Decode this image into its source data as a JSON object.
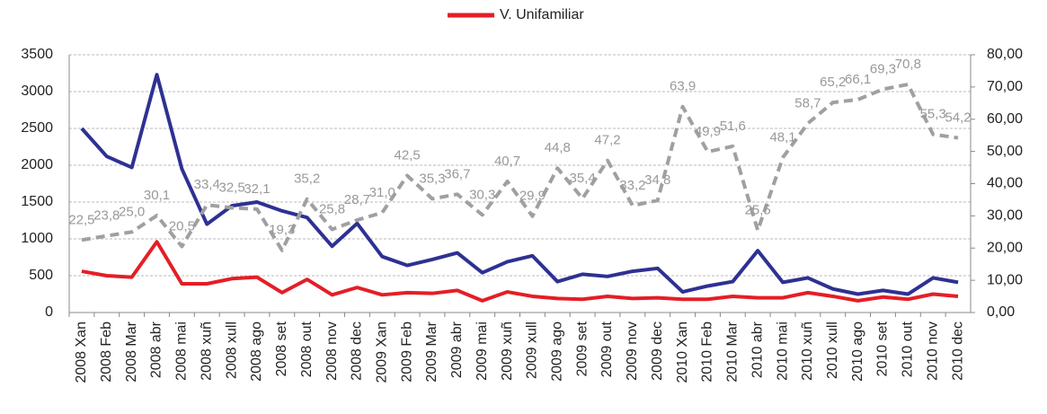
{
  "chart_data": {
    "type": "line",
    "legend": "top",
    "grid": true,
    "categories": [
      "2008 Xan",
      "2008 Feb",
      "2008 Mar",
      "2008 abr",
      "2008 mai",
      "2008 xuñ",
      "2008 xull",
      "2008 ago",
      "2008 set",
      "2008 out",
      "2008 nov",
      "2008 dec",
      "2009 Xan",
      "2009 Feb",
      "2009 Mar",
      "2009 abr",
      "2009 mai",
      "2009 xuñ",
      "2009 xull",
      "2009 ago",
      "2009 set",
      "2009 out",
      "2009 nov",
      "2009 dec",
      "2010 Xan",
      "2010 Feb",
      "2010 Mar",
      "2010 abr",
      "2010 mai",
      "2010 xuñ",
      "2010 xull",
      "2010 ago",
      "2010 set",
      "2010 out",
      "2010 nov",
      "2010 dec"
    ],
    "series": [
      {
        "color": "#2e3192",
        "values": [
          2500,
          2120,
          1970,
          3230,
          1950,
          1200,
          1450,
          1500,
          1380,
          1290,
          900,
          1210,
          760,
          640,
          720,
          810,
          540,
          690,
          770,
          420,
          520,
          490,
          560,
          600,
          280,
          360,
          420,
          840,
          410,
          470,
          320,
          250,
          300,
          250,
          470,
          410
        ]
      },
      {
        "name": "V. Unifamiliar",
        "color": "#e41e26",
        "values": [
          560,
          500,
          480,
          960,
          390,
          390,
          460,
          480,
          270,
          450,
          240,
          340,
          240,
          270,
          260,
          300,
          160,
          280,
          220,
          190,
          180,
          220,
          190,
          200,
          180,
          180,
          220,
          200,
          200,
          270,
          220,
          160,
          210,
          180,
          250,
          220
        ]
      },
      {
        "color": "#a0a0a0",
        "dashed": true,
        "axis": "y2",
        "values": [
          22.5,
          23.8,
          25.0,
          30.1,
          20.5,
          33.4,
          32.5,
          32.1,
          19.3,
          35.2,
          25.8,
          28.7,
          31.0,
          42.5,
          35.3,
          36.7,
          30.3,
          40.7,
          29.9,
          44.8,
          35.4,
          47.2,
          33.2,
          34.8,
          63.9,
          49.9,
          51.6,
          25.5,
          48.1,
          58.7,
          65.2,
          66.1,
          69.3,
          70.8,
          55.3,
          54.2
        ],
        "value_labels": [
          "22,5",
          "23,8",
          "25,0",
          "30,1",
          "20,5",
          "33,4",
          "32,5",
          "32,1",
          "19,3",
          "35,2",
          "25,8",
          "28,7",
          "31,0",
          "42,5",
          "35,3",
          "36,7",
          "30,3",
          "40,7",
          "29,9",
          "44,8",
          "35,4",
          "47,2",
          "33,2",
          "34,8",
          "63,9",
          "49,9",
          "51,6",
          "25,5",
          "48,1",
          "58,7",
          "65,2",
          "66,1",
          "69,3",
          "70,8",
          "55,3",
          "54,2"
        ]
      }
    ],
    "ylim": [
      0,
      3500
    ],
    "yticks": [
      0,
      500,
      1000,
      1500,
      2000,
      2500,
      3000,
      3500
    ],
    "y2lim": [
      0,
      80
    ],
    "y2ticks": [
      {
        "value": 0,
        "label": "0,00"
      },
      {
        "value": 10,
        "label": "10,00"
      },
      {
        "value": 20,
        "label": "20,00"
      },
      {
        "value": 30,
        "label": "30,00"
      },
      {
        "value": 40,
        "label": "40,00"
      },
      {
        "value": 50,
        "label": "50,00"
      },
      {
        "value": 60,
        "label": "60,00"
      },
      {
        "value": 70,
        "label": "70,00"
      },
      {
        "value": 80,
        "label": "80,00"
      }
    ]
  }
}
